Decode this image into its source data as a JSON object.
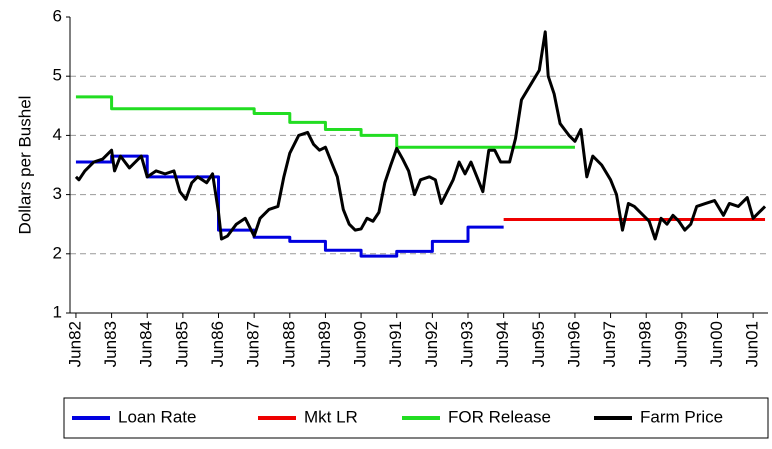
{
  "chart_data": {
    "type": "line",
    "step_series": [
      "Loan Rate",
      "Mkt LR",
      "FOR Release"
    ],
    "y_label": "Dollars per Bushel",
    "ylim": [
      1,
      6
    ],
    "yticks": [
      1,
      2,
      3,
      4,
      5,
      6
    ],
    "grid": true,
    "xlim": [
      -2,
      233
    ],
    "xticks": [
      {
        "value": 0,
        "label": "Jun82"
      },
      {
        "value": 12,
        "label": "Jun83"
      },
      {
        "value": 24,
        "label": "Jun84"
      },
      {
        "value": 36,
        "label": "Jun85"
      },
      {
        "value": 48,
        "label": "Jun86"
      },
      {
        "value": 60,
        "label": "Jun87"
      },
      {
        "value": 72,
        "label": "Jun88"
      },
      {
        "value": 84,
        "label": "Jun89"
      },
      {
        "value": 96,
        "label": "Jun90"
      },
      {
        "value": 108,
        "label": "Jun91"
      },
      {
        "value": 120,
        "label": "Jun92"
      },
      {
        "value": 132,
        "label": "Jun93"
      },
      {
        "value": 144,
        "label": "Jun94"
      },
      {
        "value": 156,
        "label": "Jun95"
      },
      {
        "value": 168,
        "label": "Jun96"
      },
      {
        "value": 180,
        "label": "Jun97"
      },
      {
        "value": 192,
        "label": "Jun98"
      },
      {
        "value": 204,
        "label": "Jun99"
      },
      {
        "value": 216,
        "label": "Jun00"
      },
      {
        "value": 228,
        "label": "Jun01"
      }
    ],
    "legend": "bottom",
    "series": [
      {
        "name": "Loan Rate",
        "color": "#0000e0",
        "x": [
          0,
          12,
          24,
          48,
          60,
          72,
          84,
          96,
          108,
          120,
          132,
          144
        ],
        "values": [
          3.55,
          3.65,
          3.3,
          2.4,
          2.28,
          2.21,
          2.06,
          1.96,
          2.04,
          2.21,
          2.45,
          2.45
        ]
      },
      {
        "name": "Mkt LR",
        "color": "#ee0000",
        "x": [
          144,
          232
        ],
        "values": [
          2.58,
          2.58
        ]
      },
      {
        "name": "FOR Release",
        "color": "#22dd22",
        "x": [
          0,
          12,
          60,
          72,
          84,
          96,
          108,
          168
        ],
        "values": [
          4.65,
          4.45,
          4.37,
          4.22,
          4.1,
          4.0,
          3.8,
          3.8
        ]
      },
      {
        "name": "Farm Price",
        "color": "#000000",
        "x": [
          0,
          1,
          3,
          6,
          9,
          12,
          13,
          15,
          18,
          21,
          22,
          24,
          27,
          30,
          33,
          35,
          37,
          39,
          41,
          44,
          46,
          48,
          49,
          51,
          54,
          57,
          58,
          60,
          62,
          65,
          68,
          70,
          72,
          75,
          78,
          80,
          82,
          84,
          86,
          88,
          90,
          92,
          94,
          96,
          98,
          100,
          102,
          104,
          106,
          108,
          110,
          112,
          114,
          116,
          119,
          121,
          123,
          125,
          127,
          129,
          131,
          133,
          135,
          137,
          139,
          141,
          143,
          146,
          148,
          150,
          153,
          156,
          158,
          159,
          161,
          163,
          166,
          168,
          170,
          172,
          174,
          177,
          180,
          182,
          184,
          186,
          188,
          191,
          193,
          195,
          197,
          199,
          201,
          203,
          205,
          207,
          209,
          212,
          215,
          218,
          220,
          223,
          226,
          228,
          230,
          232
        ],
        "values": [
          3.3,
          3.25,
          3.4,
          3.55,
          3.6,
          3.75,
          3.4,
          3.65,
          3.45,
          3.6,
          3.65,
          3.3,
          3.4,
          3.35,
          3.4,
          3.05,
          2.92,
          3.2,
          3.3,
          3.2,
          3.35,
          2.7,
          2.25,
          2.3,
          2.5,
          2.6,
          2.5,
          2.3,
          2.6,
          2.75,
          2.8,
          3.3,
          3.7,
          4.0,
          4.05,
          3.85,
          3.75,
          3.8,
          3.55,
          3.3,
          2.75,
          2.5,
          2.4,
          2.42,
          2.6,
          2.55,
          2.7,
          3.2,
          3.5,
          3.78,
          3.6,
          3.4,
          3.0,
          3.25,
          3.3,
          3.25,
          2.85,
          3.05,
          3.25,
          3.55,
          3.35,
          3.55,
          3.3,
          3.05,
          3.75,
          3.75,
          3.55,
          3.55,
          3.95,
          4.6,
          4.85,
          5.1,
          5.75,
          5.0,
          4.7,
          4.2,
          4.0,
          3.9,
          4.1,
          3.3,
          3.65,
          3.5,
          3.25,
          3.0,
          2.4,
          2.85,
          2.8,
          2.65,
          2.55,
          2.25,
          2.6,
          2.5,
          2.65,
          2.55,
          2.4,
          2.5,
          2.8,
          2.85,
          2.9,
          2.65,
          2.85,
          2.8,
          2.95,
          2.6,
          2.7,
          2.8
        ]
      }
    ]
  }
}
